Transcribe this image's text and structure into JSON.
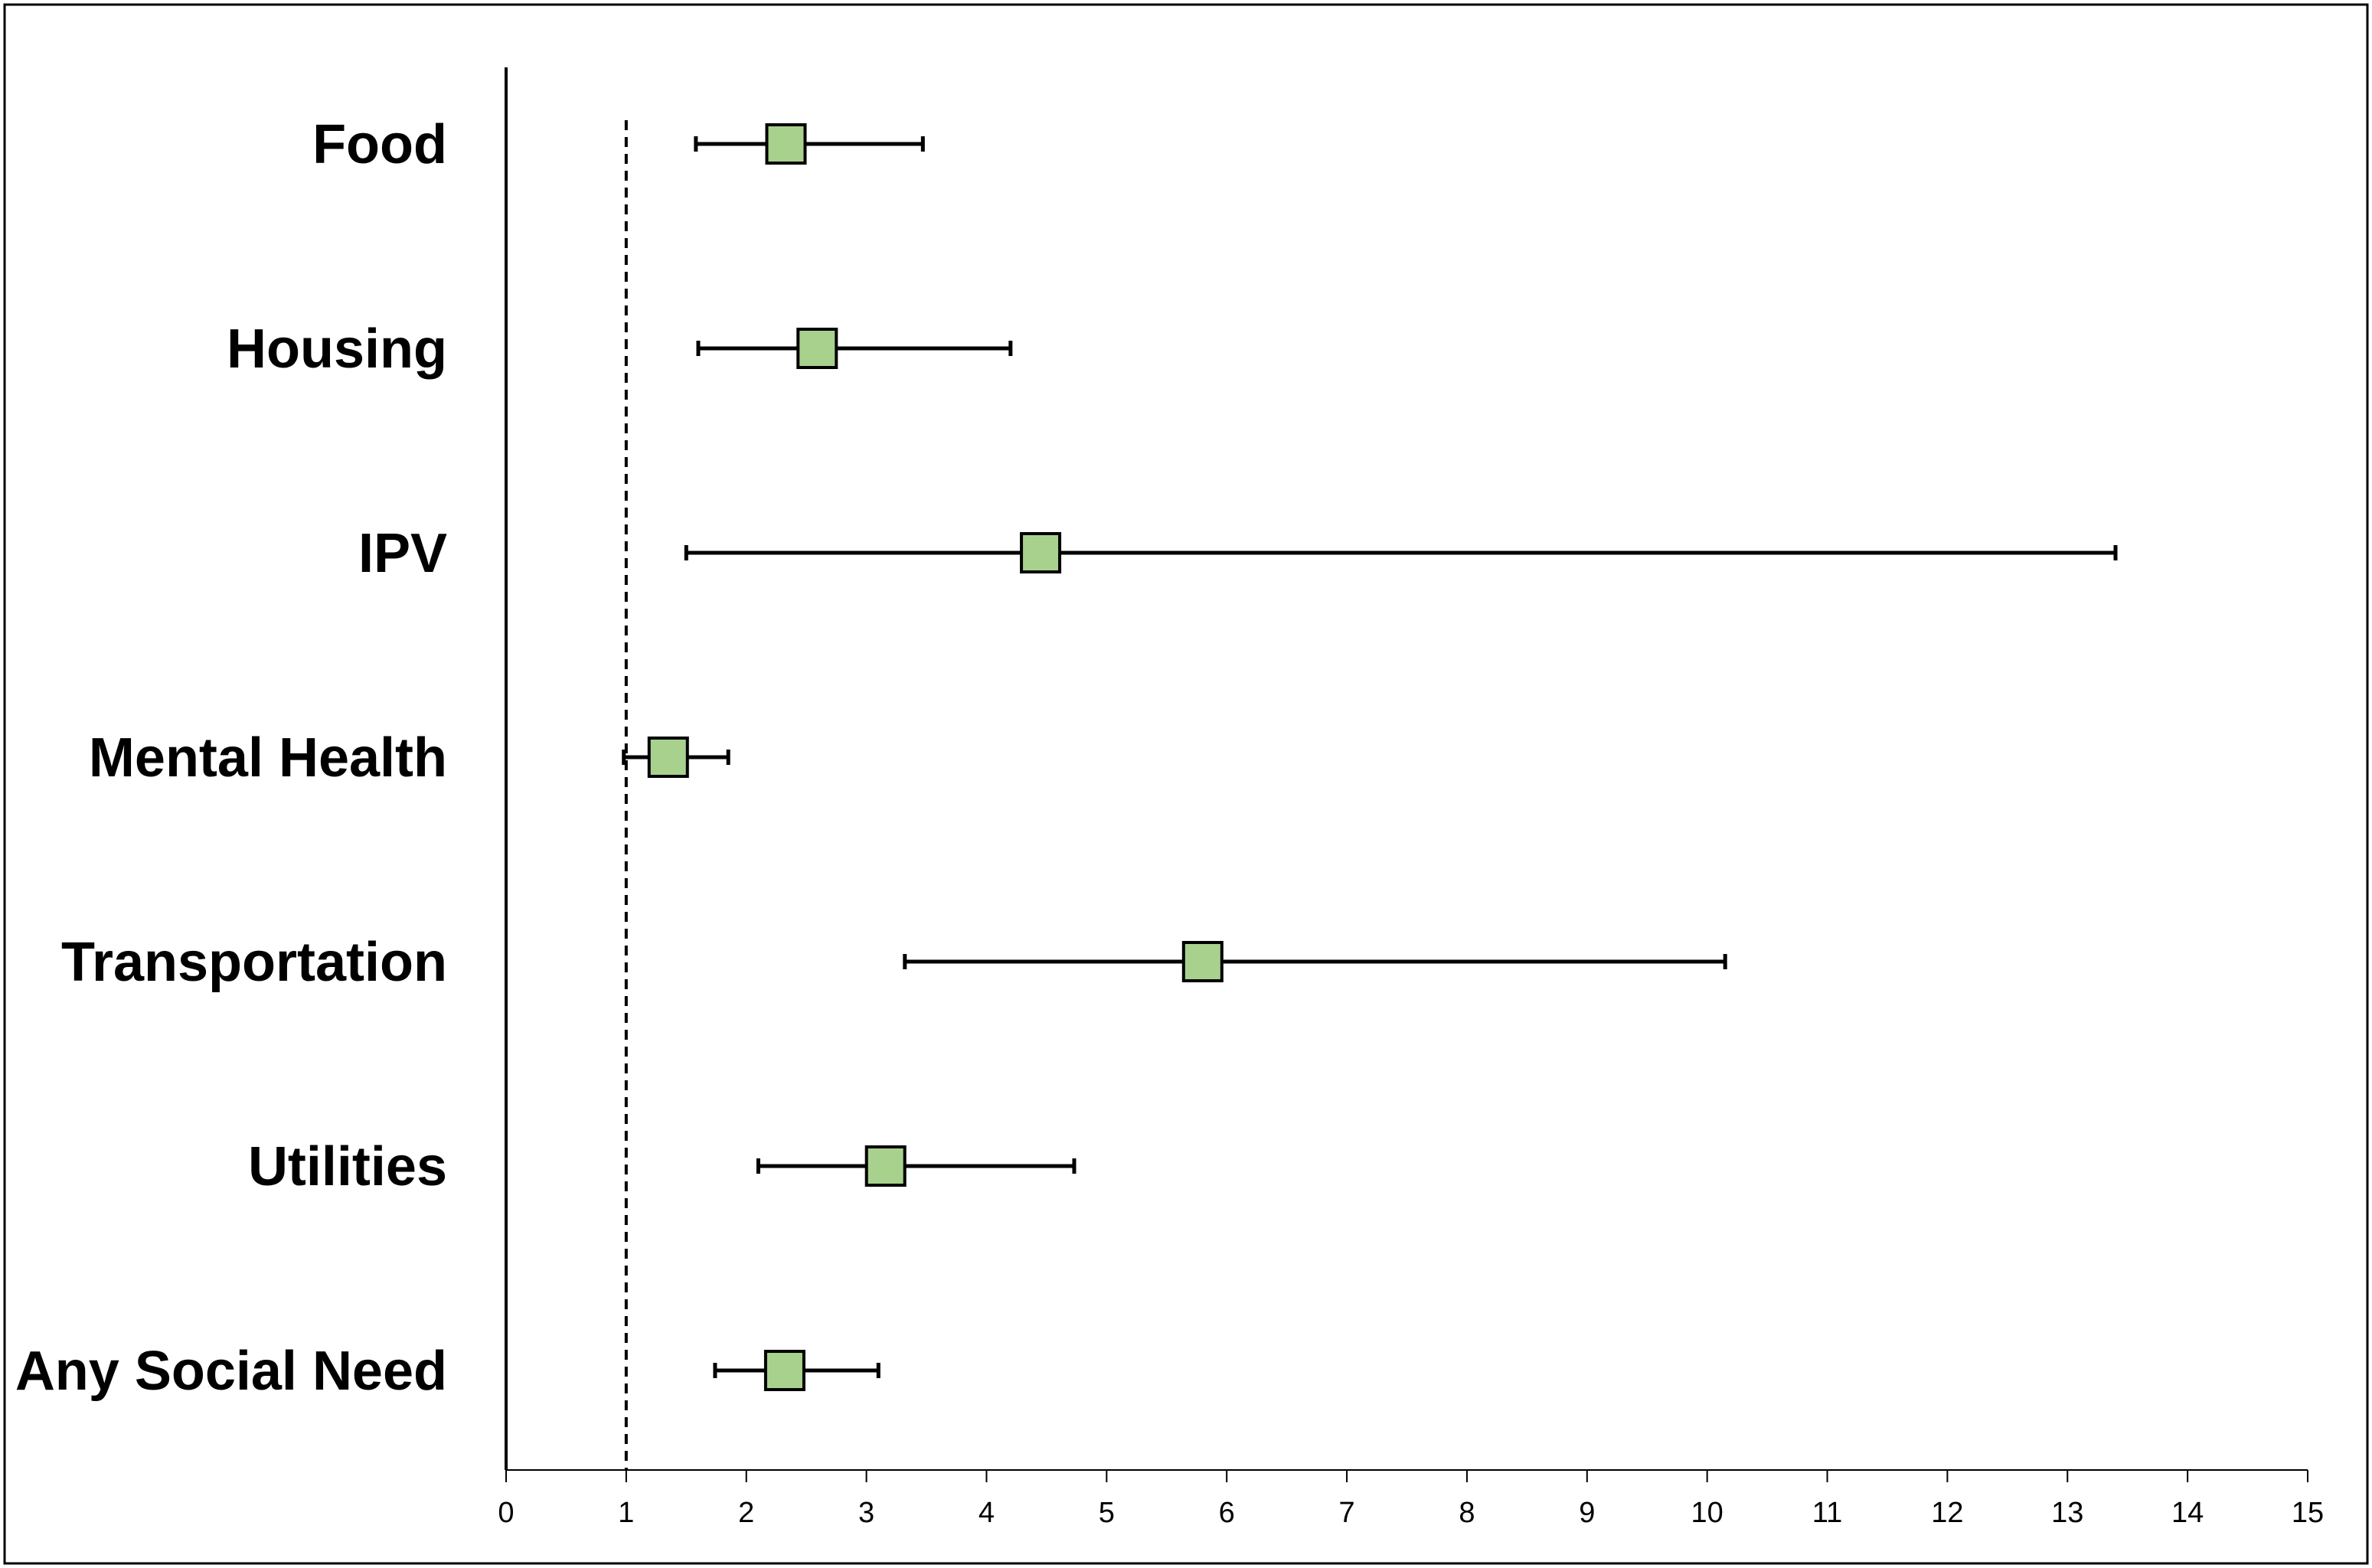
{
  "chart_data": {
    "type": "forest",
    "categories": [
      "Food",
      "Housing",
      "IPV",
      "Mental Health",
      "Transportation",
      "Utilities",
      "Any Social Need"
    ],
    "estimates": [
      2.33,
      2.59,
      4.45,
      1.35,
      5.8,
      3.16,
      2.32
    ],
    "lower": [
      1.58,
      1.6,
      1.5,
      0.98,
      3.32,
      2.1,
      1.74
    ],
    "upper": [
      3.47,
      4.2,
      13.4,
      1.85,
      10.15,
      4.73,
      3.1
    ],
    "reference_line": 1,
    "xlim": [
      0,
      15
    ],
    "xticks": [
      "0",
      "1",
      "2",
      "3",
      "4",
      "5",
      "6",
      "7",
      "8",
      "9",
      "10",
      "11",
      "12",
      "13",
      "14",
      "15"
    ],
    "marker_color": "#a9d18e",
    "title": "",
    "xlabel": "",
    "ylabel": "",
    "grid": false,
    "legend": "none"
  }
}
